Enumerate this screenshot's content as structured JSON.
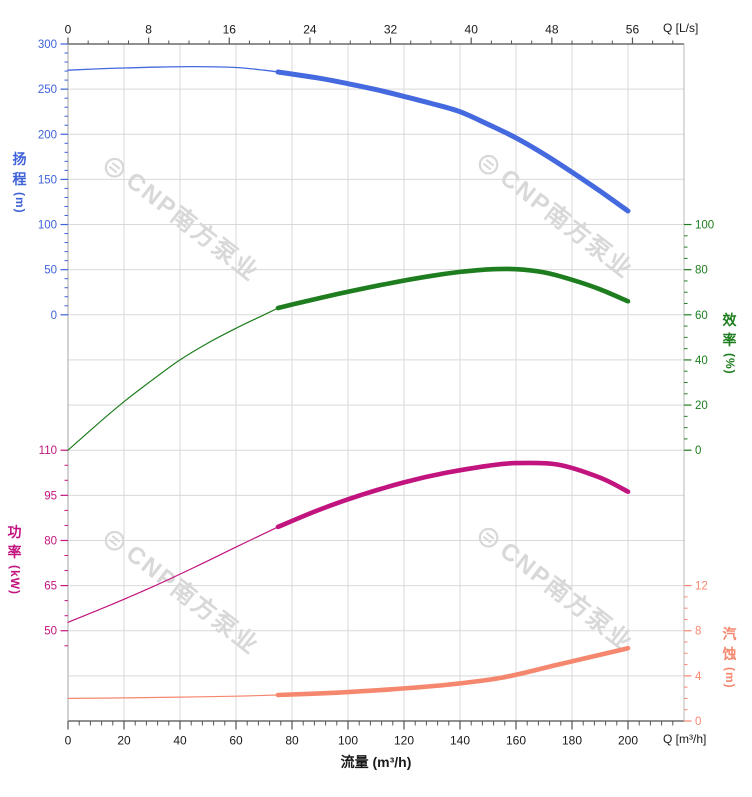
{
  "page": {
    "background": "#ffffff"
  },
  "watermark": {
    "logo_glyph": "⊜",
    "text": "CNP南方泵业",
    "color": "#d8d8d8"
  },
  "chart_data": {
    "type": "line",
    "description": "Pump performance curves: head, efficiency, power and NPSH versus flow rate",
    "grid": {
      "color": "#d9d9d9",
      "on": true
    },
    "frame": {
      "dark": "#4d4d4d",
      "left": "#a6a6a6",
      "right": "#b8b8b8"
    },
    "axes": {
      "flow_ls": {
        "label": "Q [L/s]",
        "position": "top",
        "majors": [
          0,
          8,
          16,
          24,
          32,
          40,
          48,
          56
        ],
        "minor_min": 0,
        "minor_max": 60,
        "minor_step": 2,
        "range": [
          0,
          61.1
        ],
        "tick_color": "#555555",
        "text_color": "#1a1a1a"
      },
      "flow_m3h": {
        "label": "Q [m³/h]",
        "title": "流量 (m³/h)",
        "position": "bottom",
        "majors": [
          0,
          20,
          40,
          60,
          80,
          100,
          120,
          140,
          160,
          180,
          200
        ],
        "minor_min": 0,
        "minor_max": 216,
        "minor_step": 4,
        "range": [
          0,
          220
        ],
        "tick_color": "#555555",
        "text_color": "#1a1a1a"
      },
      "head": {
        "title": "扬程",
        "unit": "(m)",
        "position": "left-upper",
        "majors": [
          300,
          250,
          200,
          150,
          100,
          50,
          0
        ],
        "minor_min": 0,
        "minor_max": 300,
        "minor_step": 10,
        "range": [
          0,
          300
        ],
        "color": "#3f62d9"
      },
      "eff": {
        "title": "效率",
        "unit": "(%)",
        "position": "right-upper",
        "majors": [
          100,
          80,
          60,
          40,
          20,
          0
        ],
        "minor_min": 0,
        "minor_max": 100,
        "minor_step": 5,
        "range": [
          0,
          100
        ],
        "color": "#1e7d1e"
      },
      "power": {
        "title": "功率",
        "unit": "(kW)",
        "position": "left-lower",
        "majors": [
          110,
          95,
          80,
          65,
          50
        ],
        "minor_min": 45,
        "minor_max": 110,
        "minor_step": 5,
        "range": [
          50,
          110
        ],
        "color": "#c2147f"
      },
      "npsh": {
        "title": "汽蚀",
        "unit": "(m)",
        "position": "right-lower",
        "majors": [
          12,
          8,
          4,
          0
        ],
        "minor_min": 0,
        "minor_max": 12,
        "minor_step": 1,
        "range": [
          0,
          12
        ],
        "color": "#f5876e"
      }
    },
    "series": [
      {
        "name": "head-curve",
        "axis": "head",
        "color": "#4569de",
        "thin": [
          [
            0,
            271
          ],
          [
            15,
            273
          ],
          [
            30,
            274.3
          ],
          [
            45,
            275
          ],
          [
            60,
            274
          ],
          [
            70,
            271
          ],
          [
            75,
            269
          ]
        ],
        "thick": [
          [
            75,
            269
          ],
          [
            90,
            262
          ],
          [
            100,
            256
          ],
          [
            110,
            249.5
          ],
          [
            120,
            242
          ],
          [
            130,
            234
          ],
          [
            140,
            225
          ],
          [
            150,
            211
          ],
          [
            160,
            196
          ],
          [
            170,
            178
          ],
          [
            180,
            158
          ],
          [
            190,
            137
          ],
          [
            200,
            115
          ]
        ]
      },
      {
        "name": "efficiency-curve",
        "axis": "eff",
        "color": "#1e7d1e",
        "thin": [
          [
            0,
            0
          ],
          [
            10,
            11
          ],
          [
            20,
            21.5
          ],
          [
            30,
            31
          ],
          [
            40,
            40
          ],
          [
            50,
            47.5
          ],
          [
            60,
            54
          ],
          [
            70,
            60
          ],
          [
            75,
            63
          ]
        ],
        "thick": [
          [
            75,
            63
          ],
          [
            85,
            66
          ],
          [
            100,
            70.2
          ],
          [
            115,
            74
          ],
          [
            130,
            77.3
          ],
          [
            140,
            79
          ],
          [
            150,
            80.1
          ],
          [
            160,
            80.2
          ],
          [
            170,
            78.8
          ],
          [
            180,
            75.5
          ],
          [
            190,
            71.3
          ],
          [
            200,
            66
          ]
        ]
      },
      {
        "name": "power-curve",
        "axis": "power",
        "color": "#c2147f",
        "thin": [
          [
            0,
            52.8
          ],
          [
            15,
            58.5
          ],
          [
            30,
            64.5
          ],
          [
            45,
            71
          ],
          [
            60,
            77.8
          ],
          [
            75,
            84.5
          ]
        ],
        "thick": [
          [
            75,
            84.5
          ],
          [
            90,
            90.3
          ],
          [
            105,
            95.2
          ],
          [
            120,
            99.3
          ],
          [
            135,
            102.5
          ],
          [
            150,
            104.8
          ],
          [
            160,
            105.7
          ],
          [
            175,
            105.2
          ],
          [
            190,
            100.9
          ],
          [
            200,
            96.2
          ]
        ]
      },
      {
        "name": "npsh-curve",
        "axis": "npsh",
        "color": "#f5876e",
        "thin": [
          [
            0,
            2.0
          ],
          [
            20,
            2.05
          ],
          [
            40,
            2.12
          ],
          [
            60,
            2.2
          ],
          [
            75,
            2.3
          ]
        ],
        "thick": [
          [
            75,
            2.3
          ],
          [
            95,
            2.5
          ],
          [
            115,
            2.8
          ],
          [
            135,
            3.2
          ],
          [
            155,
            3.85
          ],
          [
            175,
            5.0
          ],
          [
            200,
            6.45
          ]
        ]
      }
    ]
  }
}
